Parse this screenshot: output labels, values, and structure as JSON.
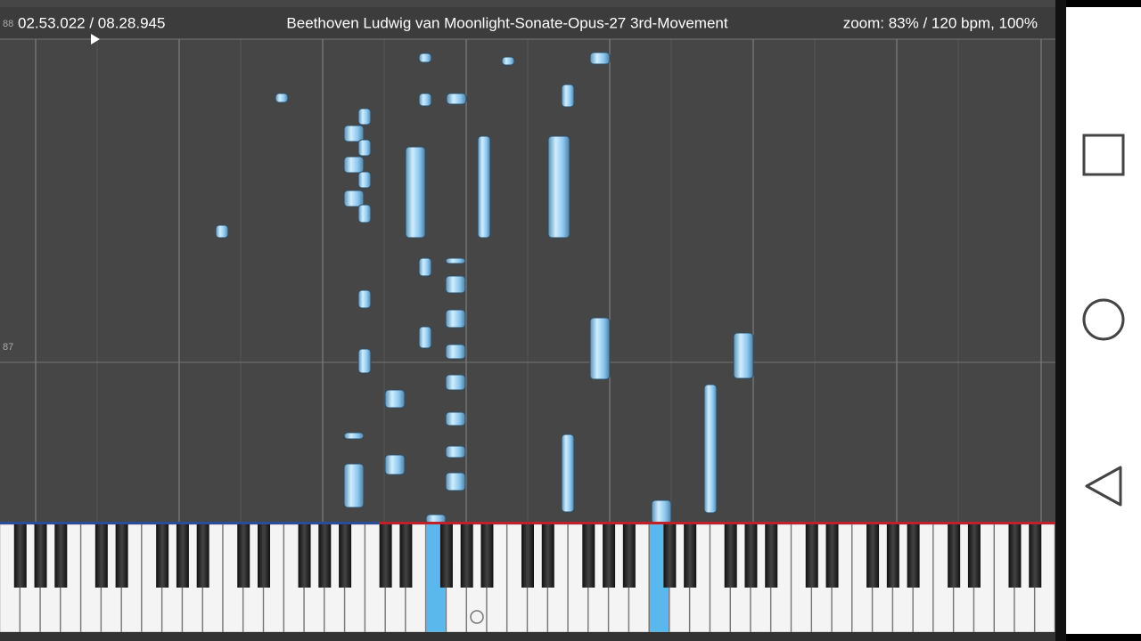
{
  "header": {
    "time": "02.53.022 / 08.28.945",
    "title": "Beethoven Ludwig van Moonlight-Sonate-Opus-27 3rd-Movement",
    "status": "zoom: 83% / 120 bpm, 100%"
  },
  "measures": [
    "88",
    "87"
  ]
}
